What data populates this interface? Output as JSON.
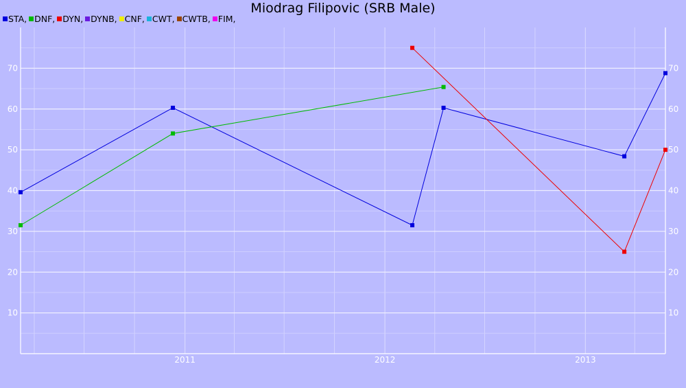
{
  "chart_data": {
    "type": "line",
    "title": "Miodrag Filipovic (SRB Male)",
    "legend": [
      {
        "label": "STA,",
        "color": "#0000dd"
      },
      {
        "label": "DNF,",
        "color": "#00bb00"
      },
      {
        "label": "DYN,",
        "color": "#ee0000"
      },
      {
        "label": "DYNB,",
        "color": "#6a1ae0"
      },
      {
        "label": "CNF,",
        "color": "#eeee00"
      },
      {
        "label": "CWT,",
        "color": "#1ab2dd"
      },
      {
        "label": "CWTB,",
        "color": "#994400"
      },
      {
        "label": "FIM,",
        "color": "#ee00ee"
      }
    ],
    "x_range": [
      "2010-03-07",
      "2013-05-27"
    ],
    "x_ticks": [
      "2011",
      "2012",
      "2013"
    ],
    "y_range": [
      0,
      80
    ],
    "y_ticks": [
      10,
      20,
      30,
      40,
      50,
      60,
      70
    ],
    "grid": true,
    "series": [
      {
        "name": "STA",
        "color": "#0000dd",
        "points": [
          {
            "x": "2010-03-07",
            "y": 39.6
          },
          {
            "x": "2010-12-10",
            "y": 60.3
          },
          {
            "x": "2012-02-20",
            "y": 31.5
          },
          {
            "x": "2012-04-17",
            "y": 60.3
          },
          {
            "x": "2013-03-13",
            "y": 48.4
          },
          {
            "x": "2013-05-27",
            "y": 68.8
          }
        ]
      },
      {
        "name": "DNF",
        "color": "#00bb00",
        "points": [
          {
            "x": "2010-03-07",
            "y": 31.5
          },
          {
            "x": "2010-12-10",
            "y": 54.0
          },
          {
            "x": "2012-04-17",
            "y": 65.4
          }
        ]
      },
      {
        "name": "DYN",
        "color": "#ee0000",
        "points": [
          {
            "x": "2012-02-20",
            "y": 75.0
          },
          {
            "x": "2013-03-13",
            "y": 25.0
          },
          {
            "x": "2013-05-27",
            "y": 50.0
          }
        ]
      }
    ]
  }
}
